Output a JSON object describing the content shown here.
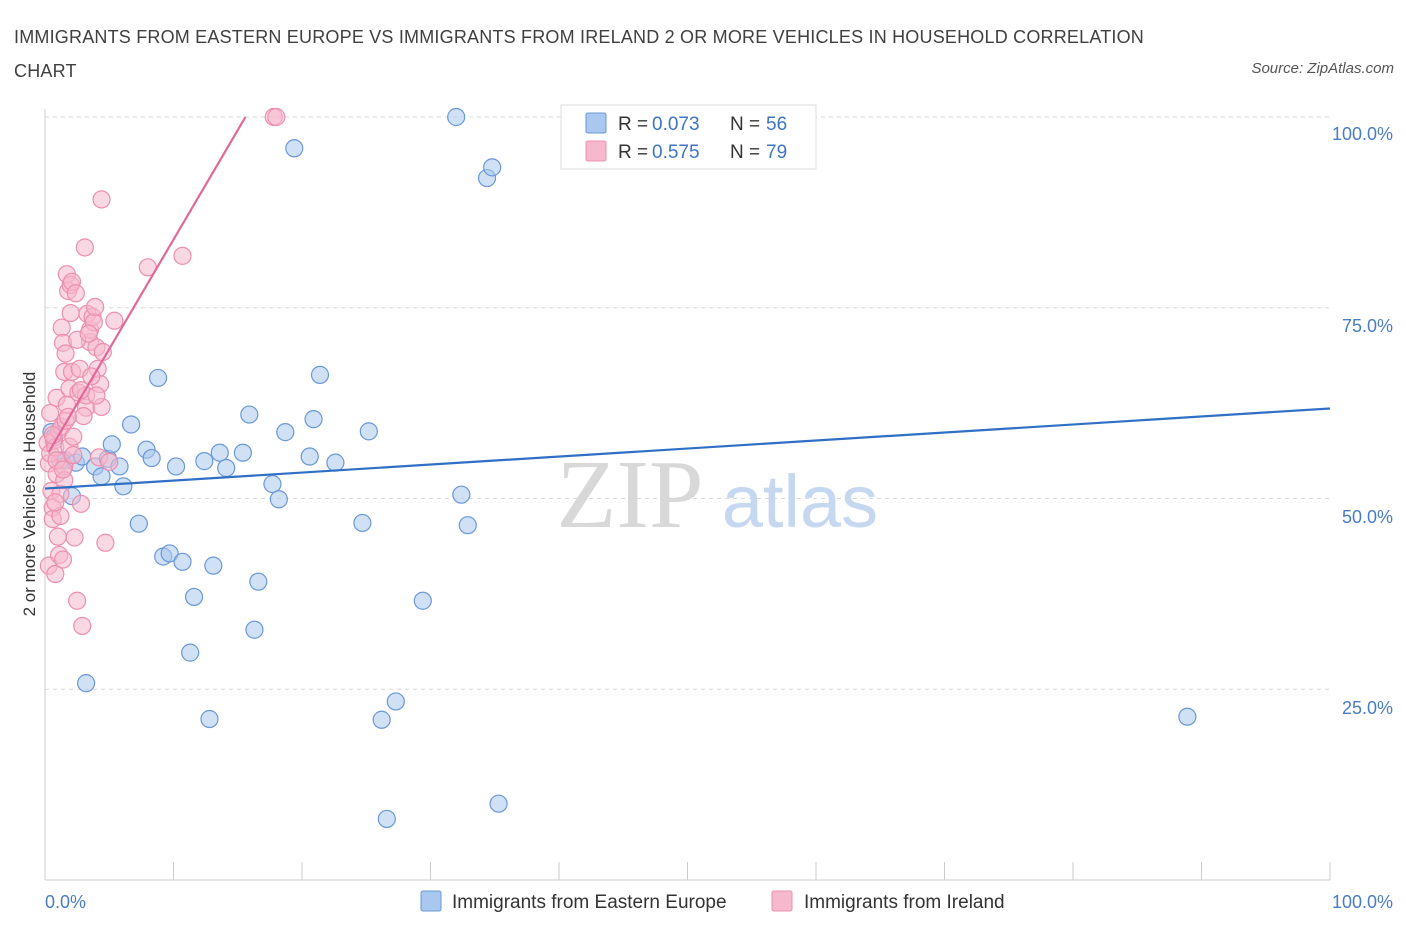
{
  "title": "IMMIGRANTS FROM EASTERN EUROPE VS IMMIGRANTS FROM IRELAND 2 OR MORE VEHICLES IN HOUSEHOLD CORRELATION CHART",
  "source": "Source: ZipAtlas.com",
  "watermark": {
    "zip": "ZIP",
    "atlas": "atlas"
  },
  "legend": {
    "r_label": "R =",
    "n_label": "N =",
    "series": [
      {
        "r": "0.073",
        "n": "56"
      },
      {
        "r": "0.575",
        "n": "79"
      }
    ]
  },
  "colors": {
    "blue_fill": "#aac8ef",
    "blue_stroke": "#6a98d6",
    "blue_line": "#2f6fc6",
    "pink_fill": "#f5b8cc",
    "pink_stroke": "#ec8fae",
    "pink_line": "#e0689a",
    "grid": "#d9d9d9",
    "tick_label": "#4a7cc4"
  },
  "chart_data": {
    "type": "scatter",
    "title": "IMMIGRANTS FROM EASTERN EUROPE VS IMMIGRANTS FROM IRELAND 2 OR MORE VEHICLES IN HOUSEHOLD CORRELATION CHART",
    "xlabel": "",
    "ylabel": "2 or more Vehicles in Household",
    "xlim": [
      0,
      100
    ],
    "ylim": [
      0,
      100
    ],
    "x_tick_labels": [
      "0.0%",
      "100.0%"
    ],
    "y_tick_labels": [
      "25.0%",
      "50.0%",
      "75.0%",
      "100.0%"
    ],
    "y_ticks": [
      25,
      50,
      75,
      100
    ],
    "grid": true,
    "legend_position": "bottom",
    "series": [
      {
        "name": "Immigrants from Eastern Europe",
        "trend": {
          "x": [
            0,
            100
          ],
          "y": [
            51.3,
            61.8
          ]
        },
        "points": [
          [
            0.5,
            58.7
          ],
          [
            0.7,
            58.0
          ],
          [
            1.2,
            55.0
          ],
          [
            1.6,
            55.0
          ],
          [
            2.1,
            50.3
          ],
          [
            2.4,
            54.7
          ],
          [
            2.9,
            55.5
          ],
          [
            3.2,
            25.8
          ],
          [
            3.9,
            54.2
          ],
          [
            4.4,
            52.9
          ],
          [
            4.9,
            55.2
          ],
          [
            5.2,
            57.1
          ],
          [
            5.8,
            54.2
          ],
          [
            6.1,
            51.6
          ],
          [
            6.7,
            59.7
          ],
          [
            7.3,
            46.7
          ],
          [
            7.9,
            56.4
          ],
          [
            8.3,
            55.3
          ],
          [
            8.8,
            65.8
          ],
          [
            9.2,
            42.4
          ],
          [
            9.7,
            42.8
          ],
          [
            10.2,
            54.2
          ],
          [
            10.7,
            41.7
          ],
          [
            11.3,
            29.8
          ],
          [
            11.6,
            37.1
          ],
          [
            12.4,
            54.9
          ],
          [
            12.8,
            21.1
          ],
          [
            13.1,
            41.2
          ],
          [
            13.6,
            56.0
          ],
          [
            14.1,
            54.0
          ],
          [
            15.4,
            56.0
          ],
          [
            15.9,
            61.0
          ],
          [
            16.3,
            32.8
          ],
          [
            16.6,
            39.1
          ],
          [
            17.7,
            51.9
          ],
          [
            18.2,
            49.9
          ],
          [
            18.7,
            58.7
          ],
          [
            19.4,
            95.9
          ],
          [
            20.6,
            55.5
          ],
          [
            20.9,
            60.4
          ],
          [
            21.4,
            66.2
          ],
          [
            22.6,
            54.7
          ],
          [
            24.7,
            46.8
          ],
          [
            25.2,
            58.8
          ],
          [
            26.2,
            21.0
          ],
          [
            26.6,
            8.0
          ],
          [
            27.3,
            23.4
          ],
          [
            29.4,
            36.6
          ],
          [
            32.0,
            100.0
          ],
          [
            32.4,
            50.5
          ],
          [
            32.9,
            46.5
          ],
          [
            34.4,
            92.0
          ],
          [
            34.8,
            93.4
          ],
          [
            35.3,
            10.0
          ],
          [
            44.5,
            100.0
          ],
          [
            88.9,
            21.4
          ]
        ]
      },
      {
        "name": "Immigrants from Ireland",
        "trend": {
          "x": [
            0.3,
            15.6
          ],
          "y": [
            56.1,
            100.0
          ]
        },
        "points": [
          [
            0.2,
            57.3
          ],
          [
            0.3,
            54.6
          ],
          [
            0.3,
            41.2
          ],
          [
            0.4,
            55.9
          ],
          [
            0.5,
            51.0
          ],
          [
            0.6,
            48.8
          ],
          [
            0.6,
            47.3
          ],
          [
            0.7,
            57.6
          ],
          [
            0.8,
            40.1
          ],
          [
            0.8,
            56.7
          ],
          [
            0.9,
            63.2
          ],
          [
            0.9,
            53.2
          ],
          [
            1.0,
            45.0
          ],
          [
            1.1,
            58.9
          ],
          [
            1.1,
            42.6
          ],
          [
            1.2,
            50.6
          ],
          [
            1.3,
            72.4
          ],
          [
            1.3,
            59.4
          ],
          [
            1.4,
            70.4
          ],
          [
            1.4,
            42.0
          ],
          [
            1.5,
            66.6
          ],
          [
            1.5,
            54.2
          ],
          [
            1.6,
            60.2
          ],
          [
            1.6,
            69.0
          ],
          [
            1.7,
            62.3
          ],
          [
            1.7,
            79.4
          ],
          [
            1.8,
            77.2
          ],
          [
            1.9,
            56.8
          ],
          [
            1.9,
            64.4
          ],
          [
            2.0,
            78.0
          ],
          [
            2.0,
            74.3
          ],
          [
            2.1,
            78.4
          ],
          [
            2.1,
            66.6
          ],
          [
            2.2,
            58.1
          ],
          [
            2.3,
            44.9
          ],
          [
            2.4,
            76.9
          ],
          [
            2.5,
            36.6
          ],
          [
            2.6,
            63.9
          ],
          [
            2.7,
            67.0
          ],
          [
            2.8,
            49.3
          ],
          [
            2.9,
            33.3
          ],
          [
            3.1,
            82.9
          ],
          [
            3.2,
            61.9
          ],
          [
            3.2,
            63.5
          ],
          [
            3.3,
            74.2
          ],
          [
            3.5,
            70.5
          ],
          [
            3.5,
            72.1
          ],
          [
            3.7,
            73.8
          ],
          [
            3.8,
            73.1
          ],
          [
            3.9,
            75.1
          ],
          [
            4.0,
            69.8
          ],
          [
            4.1,
            67.0
          ],
          [
            4.2,
            55.4
          ],
          [
            4.3,
            65.0
          ],
          [
            4.4,
            89.2
          ],
          [
            4.4,
            62.0
          ],
          [
            4.7,
            44.2
          ],
          [
            5.0,
            54.8
          ],
          [
            5.4,
            73.3
          ],
          [
            8.0,
            80.3
          ],
          [
            10.7,
            81.8
          ],
          [
            17.8,
            100.0
          ],
          [
            18.0,
            100.0
          ],
          [
            0.4,
            61.2
          ],
          [
            0.6,
            58.3
          ],
          [
            0.9,
            55.0
          ],
          [
            1.2,
            47.7
          ],
          [
            1.5,
            52.4
          ],
          [
            1.8,
            60.7
          ],
          [
            2.2,
            55.7
          ],
          [
            2.5,
            70.8
          ],
          [
            2.8,
            64.2
          ],
          [
            3.0,
            60.8
          ],
          [
            3.4,
            71.6
          ],
          [
            3.6,
            66.0
          ],
          [
            4.0,
            63.5
          ],
          [
            4.5,
            69.2
          ],
          [
            0.8,
            49.5
          ],
          [
            1.4,
            53.8
          ]
        ]
      }
    ]
  }
}
